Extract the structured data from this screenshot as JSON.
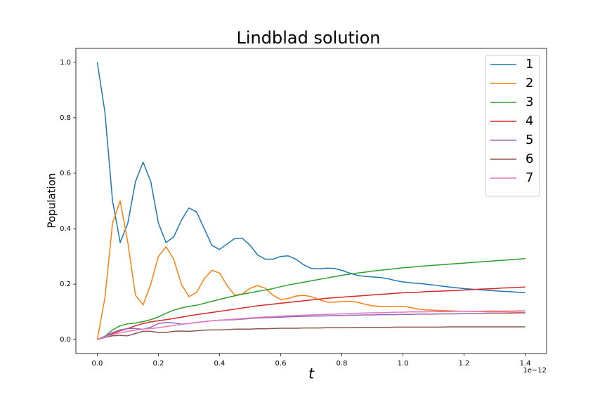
{
  "chart_data": {
    "type": "line",
    "title": "Lindblad solution",
    "xlabel": "t",
    "ylabel": "Population",
    "x_offset": "1e−12",
    "xlim": [
      -0.07,
      1.47
    ],
    "ylim": [
      -0.05,
      1.05
    ],
    "xticks": [
      {
        "value": 0,
        "label": "0.0"
      },
      0.2,
      0.4,
      0.6,
      0.8,
      {
        "value": 1,
        "label": "1.0"
      },
      1.2,
      1.4
    ],
    "yticks": [
      {
        "value": 0,
        "label": "0.0"
      },
      0.2,
      0.4,
      0.6,
      0.8,
      {
        "value": 1,
        "label": "1.0"
      }
    ],
    "grid": false,
    "legend": "upper right",
    "x": [
      0,
      0.025,
      0.05,
      0.075,
      0.1,
      0.125,
      0.15,
      0.175,
      0.2,
      0.225,
      0.25,
      0.275,
      0.3,
      0.325,
      0.35,
      0.375,
      0.4,
      0.425,
      0.45,
      0.475,
      0.5,
      0.525,
      0.55,
      0.575,
      0.6,
      0.625,
      0.65,
      0.675,
      0.7,
      0.725,
      0.75,
      0.775,
      0.8,
      0.825,
      0.85,
      0.875,
      0.9,
      0.925,
      0.95,
      0.975,
      1.0,
      1.025,
      1.05,
      1.075,
      1.1,
      1.125,
      1.15,
      1.175,
      1.2,
      1.225,
      1.25,
      1.275,
      1.3,
      1.325,
      1.35,
      1.375,
      1.4
    ],
    "series": [
      {
        "name": "1",
        "color": "#1f77b4",
        "values": [
          1.0,
          0.82,
          0.5,
          0.35,
          0.42,
          0.57,
          0.64,
          0.57,
          0.42,
          0.35,
          0.37,
          0.43,
          0.475,
          0.46,
          0.4,
          0.34,
          0.325,
          0.345,
          0.365,
          0.365,
          0.34,
          0.305,
          0.29,
          0.29,
          0.3,
          0.302,
          0.29,
          0.27,
          0.257,
          0.255,
          0.258,
          0.257,
          0.25,
          0.24,
          0.232,
          0.228,
          0.226,
          0.224,
          0.22,
          0.213,
          0.208,
          0.205,
          0.203,
          0.2,
          0.197,
          0.193,
          0.19,
          0.187,
          0.184,
          0.182,
          0.18,
          0.178,
          0.176,
          0.174,
          0.173,
          0.171,
          0.17
        ]
      },
      {
        "name": "2",
        "color": "#ff7f0e",
        "values": [
          0,
          0.15,
          0.42,
          0.5,
          0.35,
          0.16,
          0.125,
          0.2,
          0.3,
          0.335,
          0.29,
          0.2,
          0.155,
          0.17,
          0.22,
          0.25,
          0.24,
          0.195,
          0.16,
          0.165,
          0.185,
          0.195,
          0.185,
          0.16,
          0.145,
          0.148,
          0.157,
          0.16,
          0.155,
          0.145,
          0.136,
          0.135,
          0.137,
          0.138,
          0.135,
          0.128,
          0.122,
          0.12,
          0.12,
          0.12,
          0.12,
          0.116,
          0.11,
          0.107,
          0.106,
          0.105,
          0.104,
          0.103,
          0.102,
          0.102,
          0.101,
          0.1,
          0.1,
          0.1,
          0.099,
          0.099,
          0.098
        ]
      },
      {
        "name": "3",
        "color": "#2ca02c",
        "values": [
          0,
          0.012,
          0.035,
          0.05,
          0.057,
          0.06,
          0.065,
          0.072,
          0.082,
          0.095,
          0.106,
          0.114,
          0.12,
          0.124,
          0.131,
          0.138,
          0.145,
          0.152,
          0.158,
          0.164,
          0.169,
          0.174,
          0.179,
          0.184,
          0.191,
          0.197,
          0.202,
          0.207,
          0.212,
          0.217,
          0.222,
          0.227,
          0.232,
          0.236,
          0.24,
          0.243,
          0.247,
          0.25,
          0.253,
          0.256,
          0.259,
          0.261,
          0.264,
          0.266,
          0.268,
          0.27,
          0.272,
          0.274,
          0.276,
          0.278,
          0.28,
          0.282,
          0.284,
          0.286,
          0.288,
          0.29,
          0.292
        ]
      },
      {
        "name": "4",
        "color": "#d62728",
        "values": [
          0,
          0.01,
          0.022,
          0.032,
          0.04,
          0.05,
          0.058,
          0.064,
          0.068,
          0.072,
          0.076,
          0.081,
          0.086,
          0.09,
          0.094,
          0.098,
          0.102,
          0.106,
          0.11,
          0.114,
          0.118,
          0.122,
          0.125,
          0.128,
          0.131,
          0.134,
          0.137,
          0.14,
          0.143,
          0.146,
          0.149,
          0.151,
          0.153,
          0.155,
          0.157,
          0.159,
          0.161,
          0.163,
          0.165,
          0.167,
          0.169,
          0.17,
          0.171,
          0.173,
          0.174,
          0.175,
          0.176,
          0.177,
          0.179,
          0.18,
          0.182,
          0.183,
          0.184,
          0.186,
          0.187,
          0.188,
          0.19
        ]
      },
      {
        "name": "5",
        "color": "#9467bd",
        "values": [
          0,
          0.012,
          0.025,
          0.035,
          0.04,
          0.04,
          0.037,
          0.045,
          0.058,
          0.062,
          0.06,
          0.056,
          0.058,
          0.062,
          0.065,
          0.068,
          0.07,
          0.071,
          0.072,
          0.074,
          0.076,
          0.078,
          0.079,
          0.08,
          0.081,
          0.082,
          0.083,
          0.084,
          0.085,
          0.085,
          0.086,
          0.087,
          0.087,
          0.088,
          0.088,
          0.089,
          0.089,
          0.09,
          0.09,
          0.09,
          0.091,
          0.091,
          0.092,
          0.092,
          0.092,
          0.093,
          0.093,
          0.093,
          0.094,
          0.094,
          0.094,
          0.095,
          0.095,
          0.095,
          0.095,
          0.096,
          0.096
        ]
      },
      {
        "name": "6",
        "color": "#8c564b",
        "values": [
          0,
          0.008,
          0.014,
          0.015,
          0.014,
          0.022,
          0.03,
          0.03,
          0.026,
          0.026,
          0.03,
          0.031,
          0.03,
          0.032,
          0.034,
          0.035,
          0.035,
          0.036,
          0.038,
          0.038,
          0.038,
          0.039,
          0.039,
          0.04,
          0.041,
          0.041,
          0.041,
          0.042,
          0.042,
          0.042,
          0.043,
          0.043,
          0.043,
          0.043,
          0.044,
          0.044,
          0.044,
          0.044,
          0.044,
          0.045,
          0.045,
          0.045,
          0.045,
          0.045,
          0.045,
          0.045,
          0.046,
          0.046,
          0.046,
          0.046,
          0.046,
          0.046,
          0.046,
          0.046,
          0.046,
          0.046,
          0.046
        ]
      },
      {
        "name": "7",
        "color": "#e377c2",
        "values": [
          0,
          0.01,
          0.018,
          0.025,
          0.03,
          0.034,
          0.038,
          0.04,
          0.043,
          0.047,
          0.051,
          0.055,
          0.058,
          0.062,
          0.065,
          0.068,
          0.07,
          0.072,
          0.074,
          0.076,
          0.078,
          0.08,
          0.082,
          0.083,
          0.085,
          0.086,
          0.087,
          0.088,
          0.089,
          0.09,
          0.091,
          0.092,
          0.093,
          0.094,
          0.095,
          0.096,
          0.097,
          0.097,
          0.098,
          0.099,
          0.099,
          0.1,
          0.1,
          0.1,
          0.101,
          0.101,
          0.101,
          0.102,
          0.102,
          0.102,
          0.102,
          0.103,
          0.103,
          0.103,
          0.103,
          0.104,
          0.104
        ]
      }
    ]
  }
}
